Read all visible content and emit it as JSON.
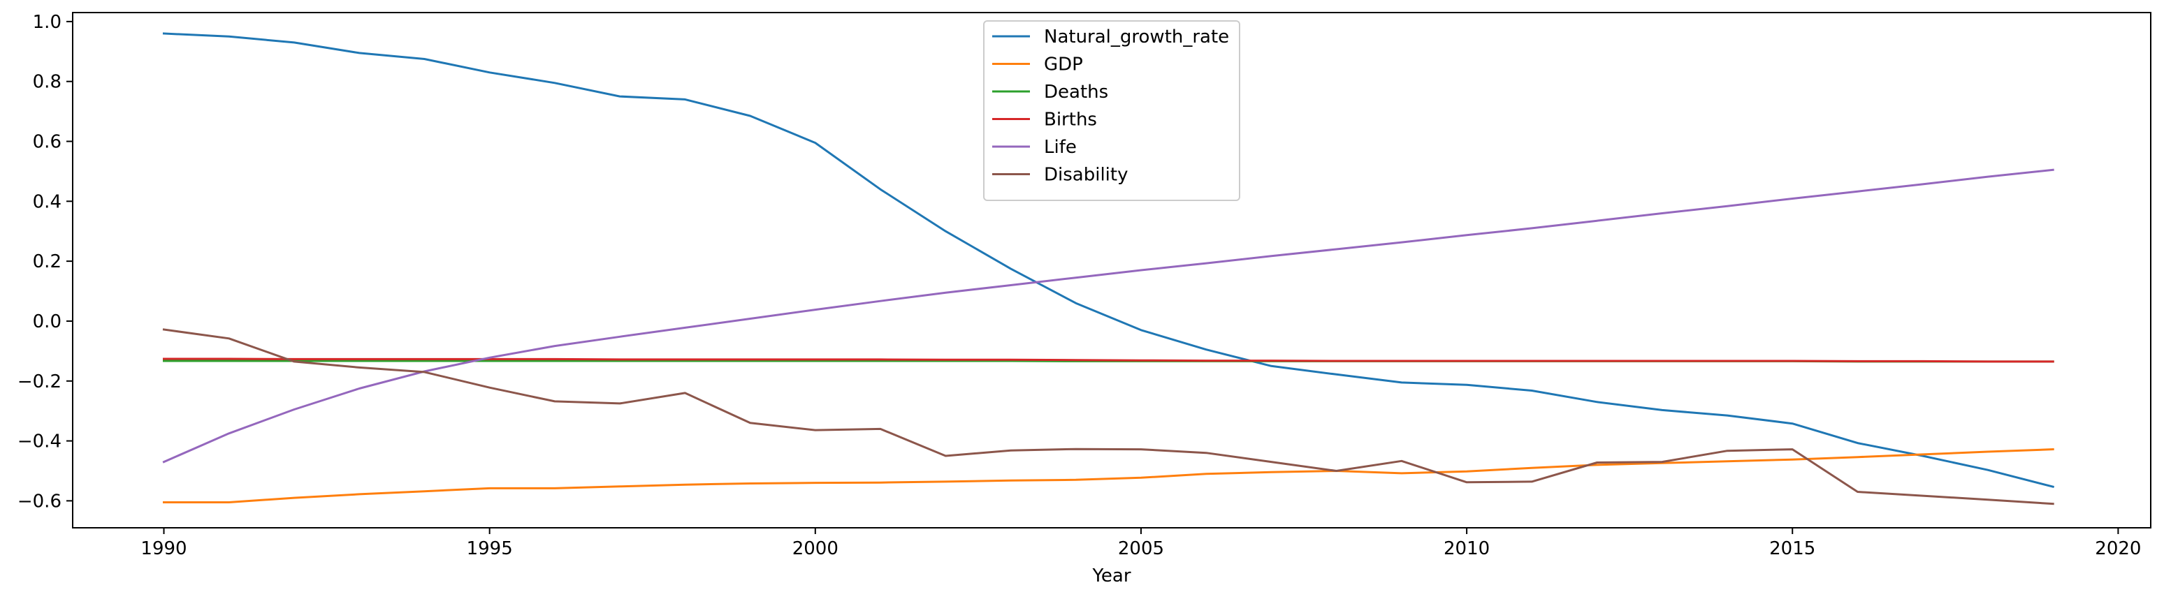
{
  "chart_data": {
    "type": "line",
    "title": "",
    "xlabel": "Year",
    "ylabel": "",
    "xlim": [
      1988.6,
      2020.5
    ],
    "ylim": [
      -0.69,
      1.03
    ],
    "xticks": [
      1990,
      1995,
      2000,
      2005,
      2010,
      2015,
      2020
    ],
    "yticks": [
      -0.6,
      -0.4,
      -0.2,
      0.0,
      0.2,
      0.4,
      0.6,
      0.8,
      1.0
    ],
    "ytick_labels": [
      "−0.6",
      "−0.4",
      "−0.2",
      "0.0",
      "0.2",
      "0.4",
      "0.6",
      "0.8",
      "1.0"
    ],
    "grid": false,
    "legend_position": "top-center",
    "x": [
      1990,
      1991,
      1992,
      1993,
      1994,
      1995,
      1996,
      1997,
      1998,
      1999,
      2000,
      2001,
      2002,
      2003,
      2004,
      2005,
      2006,
      2007,
      2008,
      2009,
      2010,
      2011,
      2012,
      2013,
      2014,
      2015,
      2016,
      2017,
      2018,
      2019
    ],
    "series": [
      {
        "name": "Natural_growth_rate",
        "color": "#1f77b4",
        "values": [
          0.96,
          0.95,
          0.93,
          0.895,
          0.875,
          0.83,
          0.795,
          0.75,
          0.74,
          0.685,
          0.595,
          0.44,
          0.3,
          0.175,
          0.06,
          -0.03,
          -0.095,
          -0.15,
          -0.178,
          -0.205,
          -0.213,
          -0.232,
          -0.27,
          -0.297,
          -0.315,
          -0.342,
          -0.407,
          -0.45,
          -0.497,
          -0.553
        ]
      },
      {
        "name": "GDP",
        "color": "#ff7f0e",
        "values": [
          -0.605,
          -0.605,
          -0.59,
          -0.578,
          -0.568,
          -0.558,
          -0.558,
          -0.552,
          -0.546,
          -0.542,
          -0.54,
          -0.539,
          -0.536,
          -0.532,
          -0.53,
          -0.523,
          -0.51,
          -0.504,
          -0.5,
          -0.508,
          -0.502,
          -0.49,
          -0.48,
          -0.474,
          -0.468,
          -0.462,
          -0.454,
          -0.445,
          -0.436,
          -0.428
        ]
      },
      {
        "name": "Deaths",
        "color": "#2ca02c",
        "values": [
          -0.133,
          -0.133,
          -0.133,
          -0.133,
          -0.133,
          -0.133,
          -0.133,
          -0.133,
          -0.133,
          -0.133,
          -0.133,
          -0.133,
          -0.133,
          -0.133,
          -0.134,
          -0.134,
          -0.134,
          -0.134,
          -0.134,
          -0.134,
          -0.134,
          -0.134,
          -0.134,
          -0.134,
          -0.134,
          -0.134,
          -0.135,
          -0.135,
          -0.135,
          -0.135
        ]
      },
      {
        "name": "Births",
        "color": "#d62728",
        "values": [
          -0.126,
          -0.126,
          -0.127,
          -0.127,
          -0.127,
          -0.127,
          -0.127,
          -0.128,
          -0.128,
          -0.128,
          -0.128,
          -0.128,
          -0.129,
          -0.129,
          -0.13,
          -0.131,
          -0.132,
          -0.132,
          -0.133,
          -0.133,
          -0.133,
          -0.133,
          -0.133,
          -0.133,
          -0.133,
          -0.133,
          -0.134,
          -0.134,
          -0.135,
          -0.135
        ]
      },
      {
        "name": "Life",
        "color": "#9467bd",
        "values": [
          -0.47,
          -0.375,
          -0.295,
          -0.225,
          -0.168,
          -0.122,
          -0.083,
          -0.052,
          -0.022,
          0.008,
          0.038,
          0.067,
          0.095,
          0.12,
          0.145,
          0.17,
          0.193,
          0.217,
          0.24,
          0.263,
          0.287,
          0.31,
          0.335,
          0.36,
          0.384,
          0.409,
          0.433,
          0.457,
          0.482,
          0.505
        ]
      },
      {
        "name": "Disability",
        "color": "#8c564b",
        "values": [
          -0.028,
          -0.058,
          -0.135,
          -0.155,
          -0.17,
          -0.222,
          -0.268,
          -0.275,
          -0.24,
          -0.34,
          -0.364,
          -0.36,
          -0.45,
          -0.432,
          -0.427,
          -0.428,
          -0.44,
          -0.47,
          -0.5,
          -0.467,
          -0.538,
          -0.536,
          -0.472,
          -0.47,
          -0.433,
          -0.428,
          -0.57,
          -0.583,
          -0.596,
          -0.61
        ]
      }
    ]
  }
}
